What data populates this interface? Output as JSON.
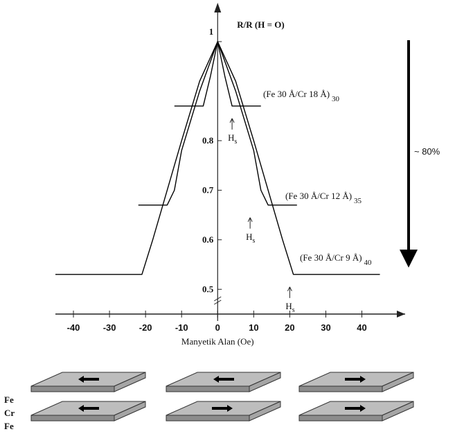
{
  "chart_data": {
    "type": "line",
    "y_label": "R/R (H = O)",
    "x_label": "Manyetik Alan (Oe)",
    "annotation": "~ 80%",
    "saturation_label": {
      "main": "H",
      "sub": "s"
    },
    "xlim": [
      -45,
      52
    ],
    "ylim": [
      0.45,
      1.07
    ],
    "xticks": [
      -40,
      -30,
      -20,
      -10,
      0,
      10,
      20,
      30,
      40
    ],
    "yticks": [
      0.5,
      0.6,
      0.7,
      0.8,
      1
    ],
    "series": [
      {
        "name": "(Fe 30 Å/Cr 18 Å)",
        "sub": "30",
        "color": "#000",
        "saturation_field": 4,
        "x": [
          -12,
          -4,
          -2,
          0,
          2,
          4,
          12
        ],
        "values": [
          0.87,
          0.87,
          0.93,
          1,
          0.93,
          0.87,
          0.87
        ]
      },
      {
        "name": "(Fe 30 Å/Cr 12 Å)",
        "sub": "35",
        "color": "#000",
        "saturation_field": 9,
        "x": [
          -22,
          -14,
          -12,
          -10,
          -5,
          0,
          5,
          10,
          12,
          14,
          22
        ],
        "values": [
          0.67,
          0.67,
          0.7,
          0.78,
          0.9,
          1,
          0.9,
          0.78,
          0.7,
          0.67,
          0.67
        ]
      },
      {
        "name": "(Fe 30 Å/Cr 9 Å)",
        "sub": "40",
        "color": "#000",
        "saturation_field": 20,
        "x": [
          -45,
          -21,
          -18,
          -10,
          -5,
          0,
          5,
          10,
          18,
          21,
          45
        ],
        "values": [
          0.53,
          0.53,
          0.6,
          0.8,
          0.92,
          1,
          0.92,
          0.8,
          0.6,
          0.53,
          0.53
        ]
      }
    ]
  },
  "diagram": {
    "layer_labels": [
      "Fe",
      "Cr",
      "Fe"
    ]
  }
}
